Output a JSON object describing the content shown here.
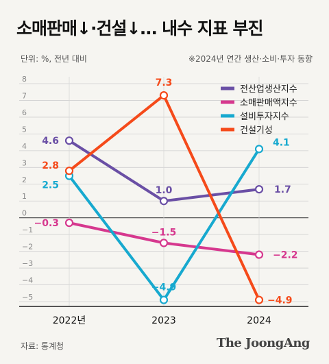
{
  "title": "소매판매↓·건설↓… 내수 지표 부진",
  "unit": "단위: %, 전년 대비",
  "note": "※2024년 연간 생산·소비·투자 동향",
  "source": "자료: 통계청",
  "brand": "The JoongAng",
  "chart_data": {
    "type": "line",
    "categories": [
      "2022년",
      "2023",
      "2024"
    ],
    "ylim": [
      -5,
      8
    ],
    "yticks": [
      "8",
      "7",
      "6",
      "5",
      "4",
      "3",
      "2",
      "1",
      "0",
      "−1",
      "−2",
      "−3",
      "−4",
      "−5"
    ],
    "grid": true,
    "legend": "top-right",
    "series": [
      {
        "name": "전산업생산지수",
        "color": "#6a4fa5",
        "values": [
          4.6,
          1.0,
          1.7
        ],
        "labels": [
          "4.6",
          "1.0",
          "1.7"
        ]
      },
      {
        "name": "소매판매액지수",
        "color": "#d6388e",
        "values": [
          -0.3,
          -1.5,
          -2.2
        ],
        "labels": [
          "−0.3",
          "−1.5",
          "−2.2"
        ]
      },
      {
        "name": "설비투자지수",
        "color": "#17a9cf",
        "values": [
          2.5,
          -4.9,
          4.1
        ],
        "labels": [
          "2.5",
          "−4.9",
          "4.1"
        ]
      },
      {
        "name": "건설기성",
        "color": "#f54a1a",
        "values": [
          2.8,
          7.3,
          -4.9
        ],
        "labels": [
          "2.8",
          "7.3",
          "−4.9"
        ]
      }
    ]
  }
}
